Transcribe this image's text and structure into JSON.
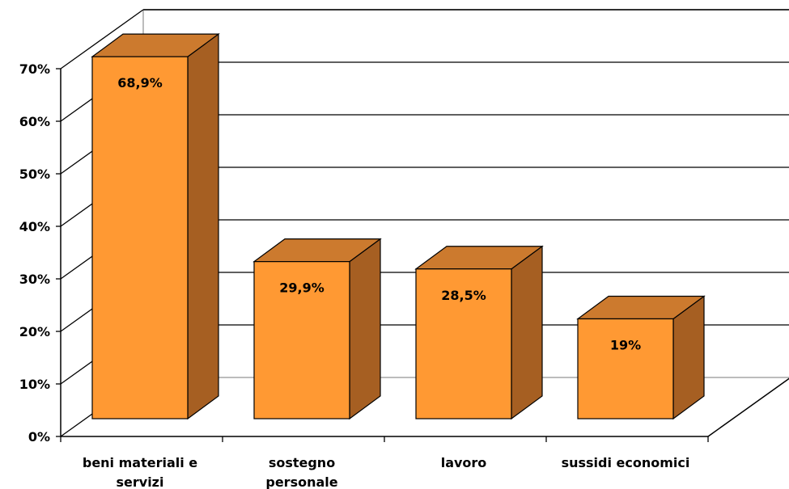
{
  "chart_data": {
    "type": "bar",
    "style": "3d",
    "categories": [
      [
        "beni materiali e",
        "servizi"
      ],
      [
        "sostegno",
        "personale"
      ],
      [
        "lavoro"
      ],
      [
        "sussidi economici"
      ]
    ],
    "values": [
      68.9,
      29.9,
      28.5,
      19
    ],
    "data_labels": [
      "68,9%",
      "29,9%",
      "28,5%",
      "19%"
    ],
    "y_ticks": [
      "0%",
      "10%",
      "20%",
      "30%",
      "40%",
      "50%",
      "60%",
      "70%"
    ],
    "ylim": [
      0,
      70
    ],
    "grid": true,
    "legend": "none",
    "colors": {
      "bar_front": "#FF9933",
      "bar_top": "#CC7A2E",
      "bar_side": "#A65F22",
      "grid": "#000000",
      "floor": "#A6A6A6"
    }
  }
}
